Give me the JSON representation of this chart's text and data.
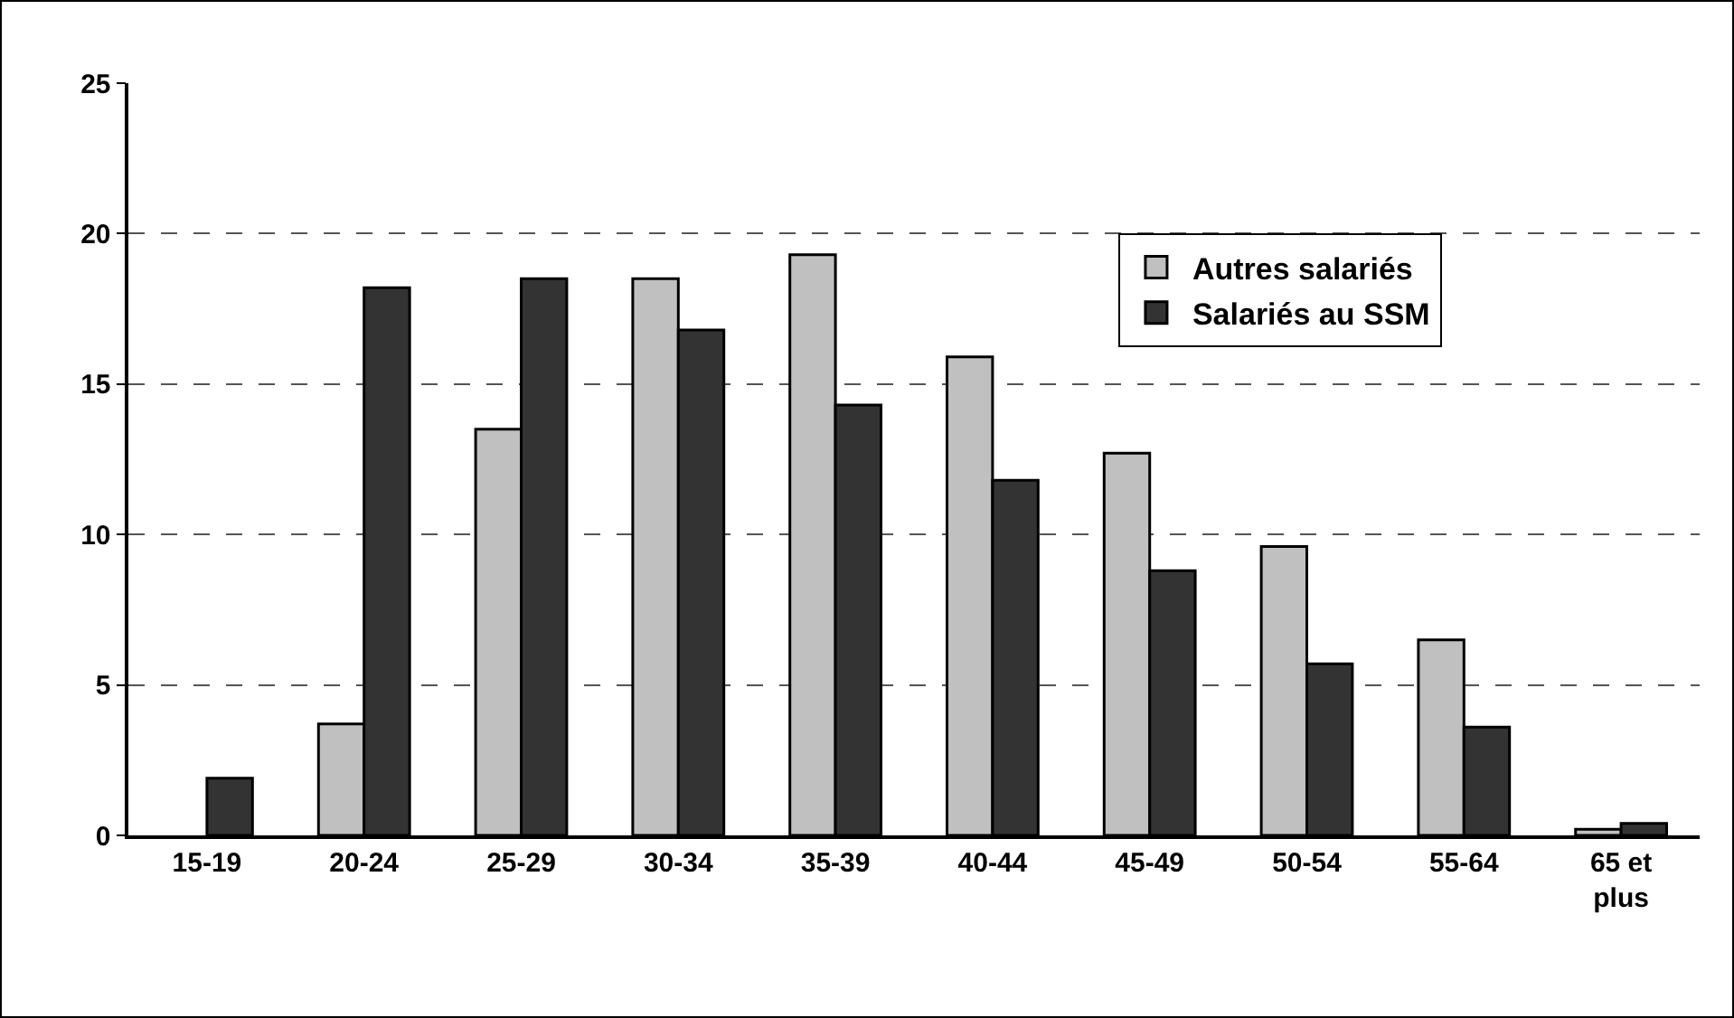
{
  "chart_data": {
    "type": "bar",
    "categories": [
      "15-19",
      "20-24",
      "25-29",
      "30-34",
      "35-39",
      "40-44",
      "45-49",
      "50-54",
      "55-64",
      "65 et plus"
    ],
    "series": [
      {
        "name": "Autres salariés",
        "color": "#c0c0c0",
        "values": [
          null,
          3.7,
          13.5,
          18.5,
          19.3,
          15.9,
          12.7,
          9.6,
          6.5,
          0.2
        ]
      },
      {
        "name": "Salariés au SSM",
        "color": "#333333",
        "values": [
          1.9,
          18.2,
          18.5,
          16.8,
          14.3,
          11.8,
          8.8,
          5.7,
          3.6,
          0.4
        ]
      }
    ],
    "ylim": [
      0,
      25
    ],
    "yticks": [
      0,
      5,
      10,
      15,
      20,
      25
    ],
    "grid": "y",
    "legend": "top right"
  }
}
